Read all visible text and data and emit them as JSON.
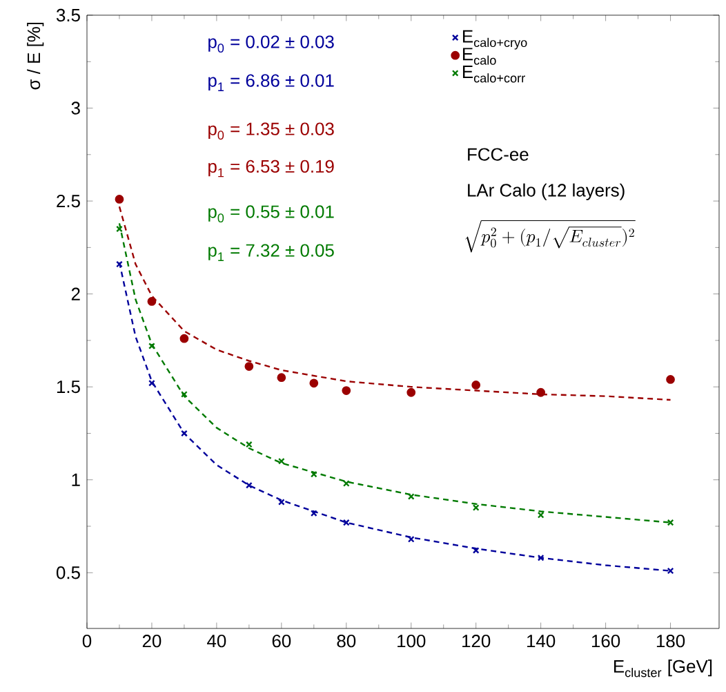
{
  "chart_data": {
    "type": "scatter",
    "xlabel": "E$_{cluster}$ [GeV]",
    "ylabel": "σ / E [%]",
    "xlim": [
      0,
      195
    ],
    "ylim": [
      0.2,
      3.5
    ],
    "xticks": [
      0,
      20,
      40,
      60,
      80,
      100,
      120,
      140,
      160,
      180
    ],
    "yticks": [
      0.5,
      1,
      1.5,
      2,
      2.5,
      3,
      3.5
    ],
    "grid": false,
    "legend": "top right",
    "series": [
      {
        "name": "E$_{calo+cryo}$",
        "color": "#00009b",
        "marker": "cross",
        "x": [
          10,
          20,
          30,
          50,
          60,
          70,
          80,
          100,
          120,
          140,
          180
        ],
        "values": [
          2.16,
          1.52,
          1.25,
          0.97,
          0.88,
          0.82,
          0.77,
          0.68,
          0.62,
          0.58,
          0.51
        ]
      },
      {
        "name": "E$_{calo}$",
        "color": "#9b0000",
        "marker": "circle",
        "x": [
          10,
          20,
          30,
          50,
          60,
          70,
          80,
          100,
          120,
          140,
          180
        ],
        "values": [
          2.51,
          1.96,
          1.76,
          1.61,
          1.55,
          1.52,
          1.48,
          1.47,
          1.51,
          1.47,
          1.54
        ]
      },
      {
        "name": "E$_{calo+corr}$",
        "color": "#007a00",
        "marker": "cross",
        "x": [
          10,
          20,
          30,
          50,
          60,
          70,
          80,
          100,
          120,
          140,
          180
        ],
        "values": [
          2.35,
          1.72,
          1.46,
          1.19,
          1.1,
          1.03,
          0.98,
          0.91,
          0.85,
          0.81,
          0.77
        ]
      },
      {
        "type": "line",
        "color": "#00009b",
        "line_style": "dashed",
        "marker": "none",
        "x": [
          10,
          15,
          20,
          30,
          40,
          50,
          60,
          80,
          100,
          120,
          140,
          160,
          180
        ],
        "values": [
          2.17,
          1.77,
          1.53,
          1.25,
          1.08,
          0.97,
          0.89,
          0.77,
          0.69,
          0.63,
          0.58,
          0.54,
          0.51
        ]
      },
      {
        "type": "line",
        "color": "#9b0000",
        "line_style": "dashed",
        "marker": "none",
        "x": [
          10,
          15,
          20,
          30,
          40,
          50,
          60,
          80,
          100,
          120,
          140,
          160,
          180
        ],
        "values": [
          2.47,
          2.16,
          1.99,
          1.8,
          1.7,
          1.64,
          1.59,
          1.53,
          1.5,
          1.48,
          1.46,
          1.45,
          1.43
        ]
      },
      {
        "type": "line",
        "color": "#007a00",
        "line_style": "dashed",
        "marker": "none",
        "x": [
          10,
          15,
          20,
          30,
          40,
          50,
          60,
          80,
          100,
          120,
          140,
          160,
          180
        ],
        "values": [
          2.38,
          1.97,
          1.73,
          1.45,
          1.28,
          1.17,
          1.09,
          0.99,
          0.92,
          0.87,
          0.83,
          0.8,
          0.77
        ]
      }
    ],
    "annotations": [
      "p$_{0}$ = 0.02 ± 0.03",
      "p$_{1}$ = 6.86 ± 0.01",
      "p$_{0}$ = 1.35 ± 0.03",
      "p$_{1}$ = 6.53 ± 0.19",
      "p$_{0}$ = 0.55 ± 0.01",
      "p$_{1}$ = 7.32 ± 0.05",
      "FCC-ee",
      "LAr Calo (12 layers)",
      "\\sqrt{p_{0}^{2} + (p_{1} / \\sqrt{E_{cluster}})^{2}}"
    ]
  }
}
